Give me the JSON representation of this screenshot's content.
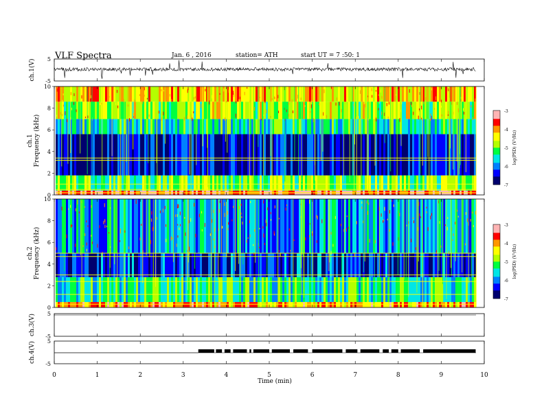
{
  "header": {
    "title": "VLF  Spectra",
    "date": "Jan. 6  , 2016",
    "station": "station= ATH",
    "start_ut": "start  UT  =   7  :50: 1"
  },
  "chart_data": [
    {
      "type": "line",
      "ylabel": "ch.1(V)",
      "ylim": [
        -5,
        5
      ],
      "yticks": [
        "5",
        "-5"
      ],
      "signal": "dense noisy waveform centred near 0 V, amplitude about ±1 V with occasional spikes"
    },
    {
      "type": "heatmap",
      "ylabel": "ch.1\nFrequency  (kHz)",
      "ylim": [
        0,
        10
      ],
      "yticks": [
        "0",
        "2",
        "4",
        "6",
        "8",
        "10"
      ],
      "colorbar": {
        "label": "log(PSD) (V²/Hz)",
        "ticks": [
          "-3",
          "-4",
          "-5",
          "-6",
          "-7"
        ]
      },
      "bands": [
        {
          "range_khz": [
            0,
            0.4
          ],
          "level": -3.5
        },
        {
          "range_khz": [
            0.4,
            1.8
          ],
          "level": -5.0
        },
        {
          "range_khz": [
            1.8,
            5.6
          ],
          "level": -6.5
        },
        {
          "range_khz": [
            5.6,
            7.0
          ],
          "level": -5.5
        },
        {
          "range_khz": [
            7.0,
            8.6
          ],
          "level": -4.8
        },
        {
          "range_khz": [
            8.6,
            10
          ],
          "level": -4.3
        }
      ],
      "tones_khz": [
        3.2,
        3.4,
        1.0,
        0.5,
        0.2
      ]
    },
    {
      "type": "heatmap",
      "ylabel": "ch.2\nFrequency  (kHz)",
      "ylim": [
        0,
        10
      ],
      "yticks": [
        "0",
        "2",
        "4",
        "6",
        "8",
        "10"
      ],
      "colorbar": {
        "label": "log(PSD) (V²/Hz)",
        "ticks": [
          "-3",
          "-4",
          "-5",
          "-6",
          "-7"
        ]
      },
      "bands": [
        {
          "range_khz": [
            0,
            0.5
          ],
          "level": -4.0
        },
        {
          "range_khz": [
            0.5,
            2.8
          ],
          "level": -5.4
        },
        {
          "range_khz": [
            2.8,
            5.0
          ],
          "level": -6.4
        },
        {
          "range_khz": [
            5.0,
            10
          ],
          "level": -5.9
        }
      ],
      "tones_khz": [
        5.0,
        4.7,
        3.0,
        2.4,
        1.2,
        0.3
      ]
    },
    {
      "type": "line",
      "ylabel": "ch.3(V)",
      "ylim": [
        -5,
        5
      ],
      "yticks": [
        "5",
        "-5"
      ],
      "signal": "no data"
    },
    {
      "type": "line",
      "ylabel": "ch.4(V)",
      "ylim": [
        -5,
        5
      ],
      "yticks": [
        "5",
        "-5"
      ],
      "signal": "flat at about -1 V until 3.35 min, then a dense square-wave burst train between 3.35 and 9.8 min",
      "segments_min": [
        [
          3.35,
          3.72
        ],
        [
          3.76,
          3.9
        ],
        [
          3.96,
          4.1
        ],
        [
          4.16,
          4.48
        ],
        [
          4.54,
          4.58
        ],
        [
          4.63,
          5.0
        ],
        [
          5.06,
          5.48
        ],
        [
          5.56,
          5.9
        ],
        [
          6.0,
          6.7
        ],
        [
          6.78,
          7.05
        ],
        [
          7.12,
          7.56
        ],
        [
          7.64,
          7.78
        ],
        [
          7.84,
          8.0
        ],
        [
          8.06,
          8.5
        ],
        [
          8.58,
          9.8
        ]
      ]
    }
  ],
  "x_axis": {
    "label": "Time  (min)",
    "xlim": [
      0,
      10
    ],
    "ticks": [
      "0",
      "1",
      "2",
      "3",
      "4",
      "5",
      "6",
      "7",
      "8",
      "9",
      "10"
    ]
  },
  "colors": {
    "scale": [
      "#00006e",
      "#0000ff",
      "#0080ff",
      "#00e6e6",
      "#00ff40",
      "#b4ff00",
      "#ffff00",
      "#ff9600",
      "#ff0000",
      "#ffb4b4"
    ]
  }
}
